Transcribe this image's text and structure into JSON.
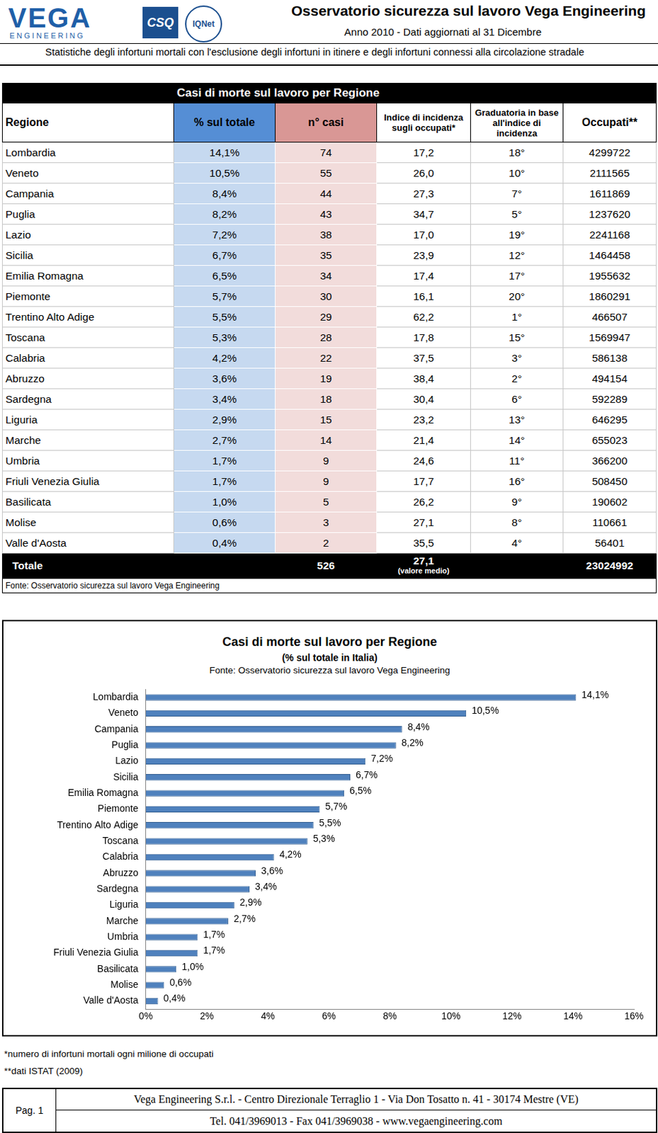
{
  "header": {
    "logo": "VEGA",
    "logo_sub": "ENGINEERING",
    "cert1": "CSQ",
    "cert2": "IQNet",
    "title": "Osservatorio sicurezza sul lavoro Vega Engineering",
    "year_line": "Anno 2010 - Dati aggiornati al 31 Dicembre",
    "subtitle": "Statistiche degli infortuni mortali con l'esclusione degli infortuni in itinere e degli infortuni connessi alla circolazione stradale"
  },
  "table": {
    "title": "Casi di morte sul lavoro per Regione",
    "columns": [
      "Regione",
      "% sul totale",
      "n° casi",
      "Indice di incidenza sugli occupati*",
      "Graduatoria in base all'indice di incidenza",
      "Occupati**"
    ],
    "rows": [
      [
        "Lombardia",
        "14,1%",
        "74",
        "17,2",
        "18°",
        "4299722"
      ],
      [
        "Veneto",
        "10,5%",
        "55",
        "26,0",
        "10°",
        "2111565"
      ],
      [
        "Campania",
        "8,4%",
        "44",
        "27,3",
        "7°",
        "1611869"
      ],
      [
        "Puglia",
        "8,2%",
        "43",
        "34,7",
        "5°",
        "1237620"
      ],
      [
        "Lazio",
        "7,2%",
        "38",
        "17,0",
        "19°",
        "2241168"
      ],
      [
        "Sicilia",
        "6,7%",
        "35",
        "23,9",
        "12°",
        "1464458"
      ],
      [
        "Emilia Romagna",
        "6,5%",
        "34",
        "17,4",
        "17°",
        "1955632"
      ],
      [
        "Piemonte",
        "5,7%",
        "30",
        "16,1",
        "20°",
        "1860291"
      ],
      [
        "Trentino Alto Adige",
        "5,5%",
        "29",
        "62,2",
        "1°",
        "466507"
      ],
      [
        "Toscana",
        "5,3%",
        "28",
        "17,8",
        "15°",
        "1569947"
      ],
      [
        "Calabria",
        "4,2%",
        "22",
        "37,5",
        "3°",
        "586138"
      ],
      [
        "Abruzzo",
        "3,6%",
        "19",
        "38,4",
        "2°",
        "494154"
      ],
      [
        "Sardegna",
        "3,4%",
        "18",
        "30,4",
        "6°",
        "592289"
      ],
      [
        "Liguria",
        "2,9%",
        "15",
        "23,2",
        "13°",
        "646295"
      ],
      [
        "Marche",
        "2,7%",
        "14",
        "21,4",
        "14°",
        "655023"
      ],
      [
        "Umbria",
        "1,7%",
        "9",
        "24,6",
        "11°",
        "366200"
      ],
      [
        "Friuli Venezia Giulia",
        "1,7%",
        "9",
        "17,7",
        "16°",
        "508450"
      ],
      [
        "Basilicata",
        "1,0%",
        "5",
        "26,2",
        "9°",
        "190602"
      ],
      [
        "Molise",
        "0,6%",
        "3",
        "27,1",
        "8°",
        "110661"
      ],
      [
        "Valle d'Aosta",
        "0,4%",
        "2",
        "35,5",
        "4°",
        "56401"
      ]
    ],
    "total": {
      "label": "Totale",
      "cases": "526",
      "incidence": "27,1",
      "incidence_note": "(valore medio)",
      "employed": "23024992"
    },
    "source": "Fonte: Osservatorio sicurezza sul lavoro Vega Engineering"
  },
  "chart_data": {
    "type": "bar",
    "title": "Casi di morte sul lavoro per Regione",
    "subtitle": "(% sul totale in Italia)",
    "source": "Fonte: Osservatorio sicurezza sul lavoro Vega Engineering",
    "orientation": "horizontal",
    "categories": [
      "Lombardia",
      "Veneto",
      "Campania",
      "Puglia",
      "Lazio",
      "Sicilia",
      "Emilia Romagna",
      "Piemonte",
      "Trentino Alto Adige",
      "Toscana",
      "Calabria",
      "Abruzzo",
      "Sardegna",
      "Liguria",
      "Marche",
      "Umbria",
      "Friuli Venezia Giulia",
      "Basilicata",
      "Molise",
      "Valle d'Aosta"
    ],
    "values": [
      14.1,
      10.5,
      8.4,
      8.2,
      7.2,
      6.7,
      6.5,
      5.7,
      5.5,
      5.3,
      4.2,
      3.6,
      3.4,
      2.9,
      2.7,
      1.7,
      1.7,
      1.0,
      0.6,
      0.4
    ],
    "value_labels": [
      "14,1%",
      "10,5%",
      "8,4%",
      "8,2%",
      "7,2%",
      "6,7%",
      "6,5%",
      "5,7%",
      "5,5%",
      "5,3%",
      "4,2%",
      "3,6%",
      "3,4%",
      "2,9%",
      "2,7%",
      "1,7%",
      "1,7%",
      "1,0%",
      "0,6%",
      "0,4%"
    ],
    "data_labels": true,
    "color": "#4f81bd",
    "xlim": [
      0,
      16
    ],
    "xticks": [
      {
        "value": 0,
        "label": "0%"
      },
      {
        "value": 2,
        "label": "2%"
      },
      {
        "value": 4,
        "label": "4%"
      },
      {
        "value": 6,
        "label": "6%"
      },
      {
        "value": 8,
        "label": "8%"
      },
      {
        "value": 10,
        "label": "10%"
      },
      {
        "value": 12,
        "label": "12%"
      },
      {
        "value": 14,
        "label": "14%"
      },
      {
        "value": 16,
        "label": "16%"
      }
    ],
    "grid": false
  },
  "footnotes": [
    "*numero di infortuni mortali ogni milione di occupati",
    "**dati ISTAT (2009)"
  ],
  "footer": {
    "page": "Pag. 1",
    "line1": "Vega Engineering S.r.l. - Centro Direzionale Terraglio 1 - Via Don Tosatto n. 41 - 30174 Mestre (VE)",
    "line2": "Tel. 041/3969013 - Fax 041/3969038 - www.vegaengineering.com"
  }
}
